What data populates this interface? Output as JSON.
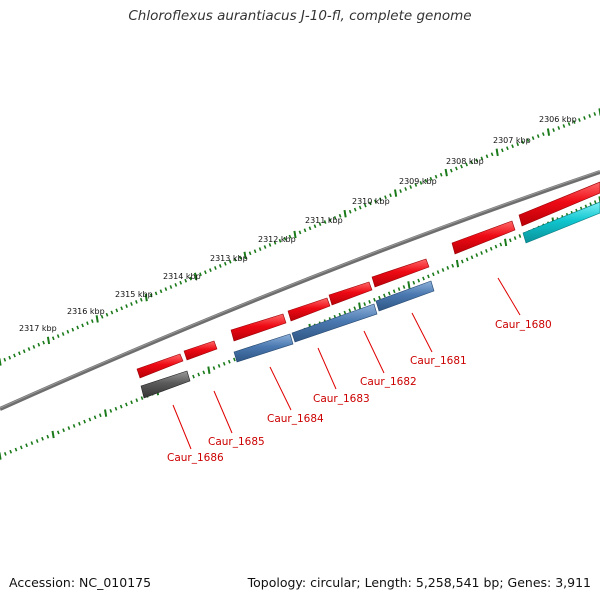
{
  "title": "Chloroflexus aurantiacus J-10-fl, complete genome",
  "footer": {
    "accession": "Accession: NC_010175",
    "summary": "Topology: circular; Length: 5,258,541 bp; Genes: 3,911"
  },
  "colors": {
    "backbone": "#6e6e6e",
    "ticks": "#1a7a1a",
    "forward_gene": "#e6000a",
    "reverse_gene": "#4a78b0",
    "highlight_gene": "#00c0c8",
    "grey_gene": "#505050",
    "label": "#cc0000"
  },
  "ruler": {
    "tick_labels": [
      "2306 kbp",
      "2307 kbp",
      "2308 kbp",
      "2309 kbp",
      "2310 kbp",
      "2311 kbp",
      "2312 kbp",
      "2313 kbp",
      "2314 kbp",
      "2315 kbp",
      "2316 kbp",
      "2317 kbp"
    ]
  },
  "genes": [
    {
      "id": "caur-1680",
      "label": "Caur_1680"
    },
    {
      "id": "caur-1681",
      "label": "Caur_1681"
    },
    {
      "id": "caur-1682",
      "label": "Caur_1682"
    },
    {
      "id": "caur-1683",
      "label": "Caur_1683"
    },
    {
      "id": "caur-1684",
      "label": "Caur_1684"
    },
    {
      "id": "caur-1685",
      "label": "Caur_1685"
    },
    {
      "id": "caur-1686",
      "label": "Caur_1686"
    }
  ]
}
